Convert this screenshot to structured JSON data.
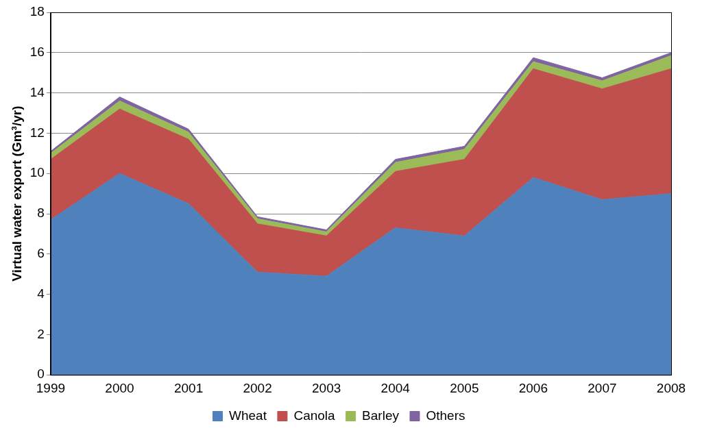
{
  "chart_data": {
    "type": "area",
    "y_label": "Virtual water export (Gm³/yr)",
    "categories": [
      "1999",
      "2000",
      "2001",
      "2002",
      "2003",
      "2004",
      "2005",
      "2006",
      "2007",
      "2008"
    ],
    "series": [
      {
        "name": "Wheat",
        "color": "#4f81bd",
        "values": [
          7.7,
          10.0,
          8.5,
          5.1,
          4.9,
          7.3,
          6.9,
          9.8,
          8.7,
          9.0
        ]
      },
      {
        "name": "Canola",
        "color": "#c0504d",
        "values": [
          3.0,
          3.2,
          3.2,
          2.4,
          2.0,
          2.8,
          3.8,
          5.4,
          5.5,
          6.2
        ]
      },
      {
        "name": "Barley",
        "color": "#9bbb59",
        "values": [
          0.3,
          0.4,
          0.35,
          0.25,
          0.2,
          0.45,
          0.5,
          0.35,
          0.4,
          0.65
        ]
      },
      {
        "name": "Others",
        "color": "#8064a2",
        "values": [
          0.1,
          0.2,
          0.15,
          0.1,
          0.1,
          0.15,
          0.15,
          0.2,
          0.15,
          0.15
        ]
      }
    ],
    "ylim": [
      0,
      18
    ],
    "yticks": [
      0,
      2,
      4,
      6,
      8,
      10,
      12,
      14,
      16,
      18
    ],
    "stacked": true,
    "grid": true,
    "legend": "bottom"
  }
}
